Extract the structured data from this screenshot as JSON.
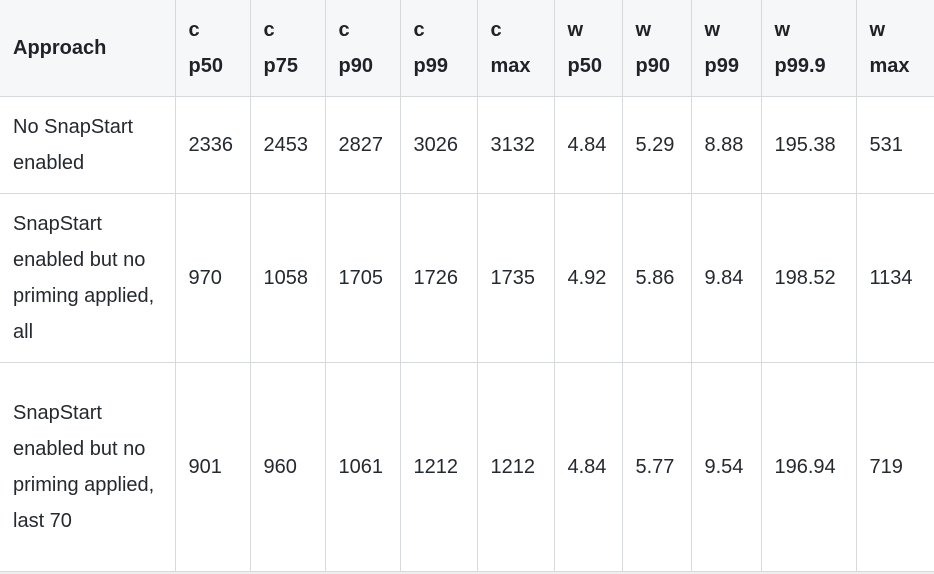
{
  "page": {
    "background_color": "#efefef"
  },
  "table": {
    "header_bg_color": "#f6f7f9",
    "border_color": "#d7dadd",
    "text_color": "#24292f",
    "row_bg_color": "#ffffff",
    "columns": [
      {
        "key": "approach",
        "label": "Approach"
      },
      {
        "key": "c_p50",
        "label": "c p50"
      },
      {
        "key": "c_p75",
        "label": "c p75"
      },
      {
        "key": "c_p90",
        "label": "c p90"
      },
      {
        "key": "c_p99",
        "label": "c p99"
      },
      {
        "key": "c_max",
        "label": "c max"
      },
      {
        "key": "w_p50",
        "label": "w p50"
      },
      {
        "key": "w_p90",
        "label": "w p90"
      },
      {
        "key": "w_p99",
        "label": "w p99"
      },
      {
        "key": "w_p999",
        "label": "w p99.9"
      },
      {
        "key": "w_max",
        "label": "w max"
      }
    ],
    "rows": [
      {
        "approach": "No SnapStart enabled",
        "values": [
          "2336",
          "2453",
          "2827",
          "3026",
          "3132",
          "4.84",
          "5.29",
          "8.88",
          "195.38",
          "531"
        ]
      },
      {
        "approach": "SnapStart enabled but no priming applied, all",
        "values": [
          "970",
          "1058",
          "1705",
          "1726",
          "1735",
          "4.92",
          "5.86",
          "9.84",
          "198.52",
          "1134"
        ]
      },
      {
        "approach": "SnapStart enabled but no priming applied, last 70",
        "values": [
          "901",
          "960",
          "1061",
          "1212",
          "1212",
          "4.84",
          "5.77",
          "9.54",
          "196.94",
          "719"
        ]
      }
    ]
  },
  "chart_data": {
    "type": "table",
    "columns": [
      "Approach",
      "c p50",
      "c p75",
      "c p90",
      "c p99",
      "c max",
      "w p50",
      "w p90",
      "w p99",
      "w p99.9",
      "w max"
    ],
    "rows": [
      [
        "No SnapStart enabled",
        2336,
        2453,
        2827,
        3026,
        3132,
        4.84,
        5.29,
        8.88,
        195.38,
        531
      ],
      [
        "SnapStart enabled but no priming applied, all",
        970,
        1058,
        1705,
        1726,
        1735,
        4.92,
        5.86,
        9.84,
        198.52,
        1134
      ],
      [
        "SnapStart enabled but no priming applied, last 70",
        901,
        960,
        1061,
        1212,
        1212,
        4.84,
        5.77,
        9.54,
        196.94,
        719
      ]
    ]
  }
}
